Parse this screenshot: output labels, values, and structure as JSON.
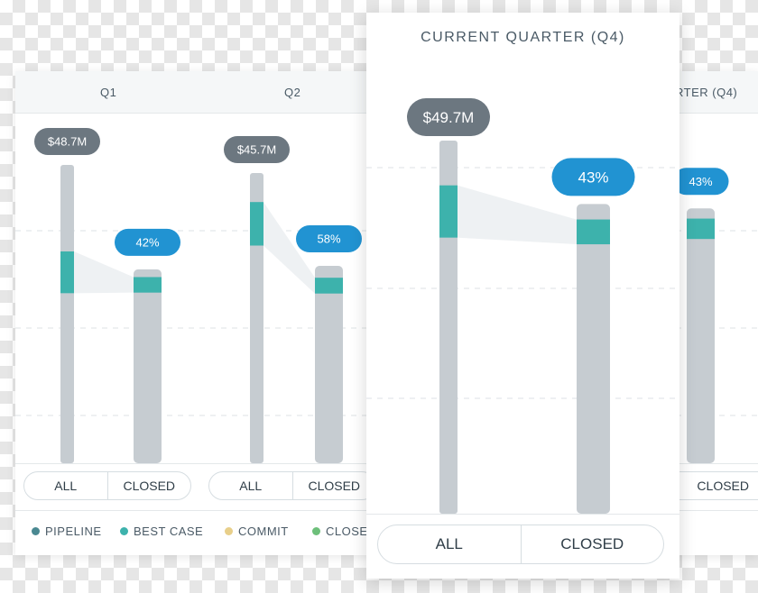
{
  "colors": {
    "pipeline": "#4a8891",
    "best_case": "#3db2ac",
    "commit": "#e8cf8a",
    "closed": "#6dbf7a",
    "bar_gray": "#c6ccd1",
    "total_pill": "#6c7780",
    "pct_pill": "#2193d2"
  },
  "legend": [
    {
      "label": "PIPELINE",
      "color": "#4a8891"
    },
    {
      "label": "BEST CASE",
      "color": "#3db2ac"
    },
    {
      "label": "COMMIT",
      "color": "#e8cf8a"
    },
    {
      "label": "CLOSE",
      "color": "#6dbf7a"
    }
  ],
  "toggle": {
    "all": "ALL",
    "closed": "CLOSED"
  },
  "current_quarter": {
    "title": "CURRENT QUARTER (Q4)"
  },
  "chart_data": {
    "type": "bar",
    "quarters": [
      {
        "id": "q1",
        "label": "Q1",
        "total": "$48.7M",
        "closed_pct": "42%",
        "all_bar": {
          "band_start": 0.29,
          "band_end": 0.43
        },
        "closed_bar": {
          "height": 0.65,
          "band_start": 0.04,
          "band_end": 0.12
        }
      },
      {
        "id": "q2",
        "label": "Q2",
        "total": "$45.7M",
        "closed_pct": "58%",
        "all_bar": {
          "band_start": 0.1,
          "band_end": 0.25
        },
        "closed_bar": {
          "height": 0.68,
          "band_start": 0.06,
          "band_end": 0.14
        }
      },
      {
        "id": "q3",
        "label": "RTER (Q4)",
        "total": "",
        "closed_pct": "43%",
        "all_bar": null,
        "closed_bar": {
          "height": 0.65,
          "band_start": 0.04,
          "band_end": 0.12
        }
      },
      {
        "id": "q4",
        "label": "CURRENT QUARTER (Q4)",
        "total": "$49.7M",
        "closed_pct": "43%",
        "all_bar": {
          "band_start": 0.12,
          "band_end": 0.26
        },
        "closed_bar": {
          "height": 0.83,
          "band_start": 0.05,
          "band_end": 0.13
        }
      }
    ],
    "legend": [
      "PIPELINE",
      "BEST CASE",
      "COMMIT",
      "CLOSE"
    ],
    "xlabel": "",
    "ylabel": ""
  }
}
